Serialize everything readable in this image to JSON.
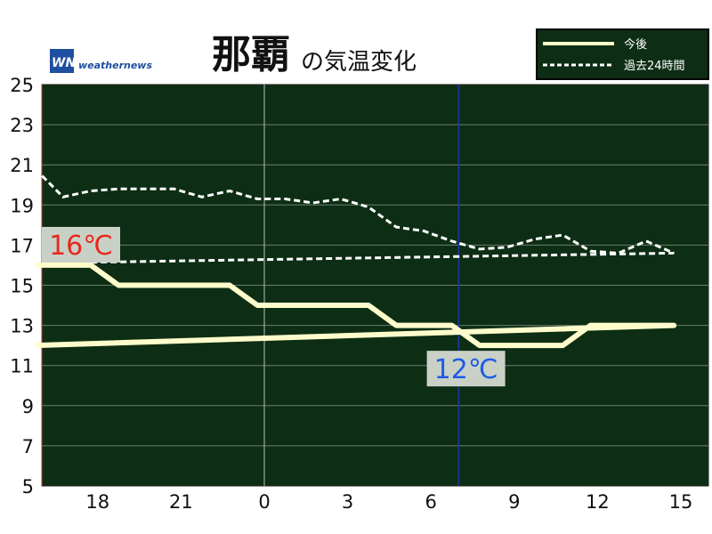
{
  "title": {
    "main": "那覇",
    "sub": "の気温変化"
  },
  "brand": {
    "logo_text": "WN",
    "name": "weathernews"
  },
  "legend": {
    "forecast_label": "今後",
    "past_label": "過去24時間"
  },
  "colors": {
    "plot_bg": "#0d2e14",
    "grid": "#6b7d6e",
    "forecast_line": "#fffccc",
    "past_line": "#ffffff",
    "max_label": "#e8281e",
    "min_label": "#1e5be8",
    "label_bg": "#c9d1c7",
    "now_line": "#1a3aa8"
  },
  "chart_data": {
    "type": "line",
    "x_tick_labels": [
      "18",
      "21",
      "0",
      "3",
      "6",
      "9",
      "12",
      "15"
    ],
    "y_tick_labels": [
      "25",
      "23",
      "21",
      "19",
      "17",
      "15",
      "13",
      "11",
      "9",
      "7",
      "5"
    ],
    "ylim": [
      5,
      25
    ],
    "grid": true,
    "legend_position": "top-right",
    "now_marker_hour": 7,
    "series": [
      {
        "name": "過去24時間",
        "style": "dashed",
        "x": [
          15.75,
          16.75,
          17.75,
          18.75,
          19.75,
          20.75,
          21.75,
          22.75,
          23.75,
          0.75,
          1.75,
          2.75,
          3.75,
          4.75,
          5.75,
          6.75,
          7.75,
          8.75,
          9.75,
          10.75,
          11.75,
          12.75,
          13.75,
          14.75,
          15.75
        ],
        "values": [
          20.8,
          19.4,
          19.7,
          19.8,
          19.8,
          19.8,
          19.4,
          19.7,
          19.3,
          19.3,
          19.1,
          19.3,
          18.9,
          17.9,
          17.7,
          17.2,
          16.8,
          16.9,
          17.3,
          17.5,
          16.7,
          16.6,
          17.2,
          16.6,
          16.1
        ]
      },
      {
        "name": "今後",
        "style": "solid",
        "x": [
          15.75,
          17.75,
          18.75,
          22.75,
          23.75,
          3.75,
          4.75,
          6.75,
          7.75,
          10.75,
          11.75,
          14.75,
          15.75
        ],
        "values": [
          16,
          16,
          15,
          15,
          14,
          14,
          13,
          13,
          12,
          12,
          13,
          13,
          12
        ]
      }
    ],
    "annotations": [
      {
        "text": "16℃",
        "x": 15.75,
        "value": 16,
        "kind": "max"
      },
      {
        "text": "12℃",
        "x": 6.75,
        "value": 12,
        "kind": "min"
      }
    ]
  }
}
